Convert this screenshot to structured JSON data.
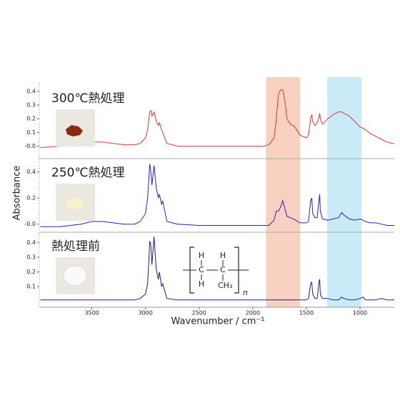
{
  "bands": [
    {
      "range": [
        1876,
        1558
      ],
      "color": "#f7c9b5"
    },
    {
      "range": [
        1305,
        987
      ],
      "color": "#bfe6f6"
    }
  ],
  "chart_data": [
    {
      "type": "line",
      "title": "300℃熱処理",
      "color": "#e03535",
      "x": [
        3980,
        3800,
        3600,
        3500,
        3400,
        3300,
        3200,
        3100,
        3050,
        3000,
        2980,
        2960,
        2950,
        2940,
        2920,
        2900,
        2880,
        2870,
        2850,
        2840,
        2800,
        2700,
        2500,
        2300,
        2100,
        2000,
        1900,
        1850,
        1800,
        1780,
        1760,
        1740,
        1720,
        1700,
        1680,
        1650,
        1620,
        1600,
        1560,
        1500,
        1480,
        1460,
        1450,
        1440,
        1420,
        1400,
        1380,
        1375,
        1370,
        1350,
        1300,
        1250,
        1200,
        1170,
        1150,
        1100,
        1050,
        1000,
        970,
        950,
        900,
        850,
        800,
        750,
        700,
        680
      ],
      "values": [
        -0.01,
        0.0,
        0.02,
        0.03,
        0.03,
        0.02,
        0.01,
        0.01,
        0.02,
        0.06,
        0.12,
        0.25,
        0.26,
        0.22,
        0.25,
        0.18,
        0.15,
        0.17,
        0.12,
        0.1,
        0.02,
        0.0,
        0.0,
        0.0,
        0.0,
        0.0,
        0.0,
        0.01,
        0.06,
        0.2,
        0.38,
        0.41,
        0.41,
        0.33,
        0.2,
        0.16,
        0.15,
        0.13,
        0.08,
        0.06,
        0.08,
        0.2,
        0.23,
        0.18,
        0.15,
        0.17,
        0.22,
        0.24,
        0.2,
        0.16,
        0.2,
        0.23,
        0.25,
        0.25,
        0.24,
        0.22,
        0.18,
        0.14,
        0.13,
        0.12,
        0.09,
        0.07,
        0.05,
        0.03,
        0.02,
        0.02
      ],
      "xlim": [
        3990,
        680
      ],
      "ylim": [
        -0.07,
        0.43
      ],
      "yticks": [
        {
          "value": 0,
          "label": "-0.0"
        },
        0.1,
        0.2,
        0.3,
        0.4
      ]
    },
    {
      "type": "line",
      "title": "250℃熱処理",
      "color": "#2323c4",
      "ylabel": "Absorbance",
      "x": [
        3980,
        3800,
        3600,
        3500,
        3400,
        3300,
        3200,
        3100,
        3050,
        3000,
        2980,
        2960,
        2950,
        2940,
        2920,
        2900,
        2880,
        2870,
        2850,
        2840,
        2800,
        2700,
        2500,
        2300,
        2100,
        2000,
        1900,
        1850,
        1800,
        1780,
        1760,
        1740,
        1720,
        1700,
        1680,
        1650,
        1620,
        1600,
        1560,
        1500,
        1480,
        1460,
        1450,
        1440,
        1420,
        1400,
        1380,
        1375,
        1370,
        1350,
        1300,
        1250,
        1200,
        1170,
        1150,
        1100,
        1050,
        1000,
        970,
        950,
        900,
        850,
        800,
        750,
        700,
        680
      ],
      "values": [
        -0.02,
        -0.02,
        0.0,
        0.02,
        0.02,
        0.01,
        0.0,
        0.0,
        0.02,
        0.08,
        0.2,
        0.46,
        0.4,
        0.3,
        0.45,
        0.28,
        0.2,
        0.23,
        0.15,
        0.18,
        0.02,
        0.0,
        -0.01,
        -0.01,
        -0.01,
        -0.01,
        -0.01,
        -0.01,
        0.03,
        0.1,
        0.1,
        0.13,
        0.18,
        0.12,
        0.06,
        0.05,
        0.04,
        0.03,
        0.01,
        0.01,
        0.02,
        0.18,
        0.2,
        0.08,
        0.05,
        0.05,
        0.2,
        0.23,
        0.1,
        0.04,
        0.03,
        0.04,
        0.05,
        0.09,
        0.07,
        0.04,
        0.03,
        0.04,
        0.03,
        0.02,
        0.01,
        0.01,
        0.0,
        -0.01,
        -0.01,
        -0.01
      ],
      "xlim": [
        3990,
        680
      ],
      "ylim": [
        -0.04,
        0.48
      ],
      "yticks": [
        {
          "value": 0,
          "label": "-0.0"
        },
        0.2,
        0.4
      ]
    },
    {
      "type": "line",
      "title": "熱処理前",
      "color": "#1c1c9c",
      "xlabel": "Wavenumber / cm⁻¹",
      "x": [
        3980,
        3800,
        3600,
        3500,
        3400,
        3300,
        3200,
        3100,
        3050,
        3000,
        2980,
        2960,
        2950,
        2940,
        2920,
        2900,
        2880,
        2870,
        2850,
        2840,
        2800,
        2700,
        2500,
        2300,
        2100,
        2000,
        1900,
        1850,
        1800,
        1780,
        1760,
        1740,
        1720,
        1700,
        1680,
        1650,
        1620,
        1600,
        1560,
        1500,
        1480,
        1460,
        1450,
        1440,
        1420,
        1400,
        1380,
        1375,
        1370,
        1350,
        1300,
        1250,
        1200,
        1170,
        1150,
        1100,
        1050,
        1000,
        970,
        950,
        900,
        850,
        800,
        750,
        700,
        680
      ],
      "values": [
        0.01,
        0.01,
        0.01,
        0.01,
        0.01,
        0.01,
        0.01,
        0.01,
        0.02,
        0.05,
        0.12,
        0.41,
        0.38,
        0.25,
        0.44,
        0.22,
        0.15,
        0.2,
        0.1,
        0.12,
        0.02,
        0.01,
        0.01,
        0.01,
        0.01,
        0.01,
        0.01,
        0.01,
        0.01,
        0.01,
        0.01,
        0.01,
        0.01,
        0.01,
        0.01,
        0.01,
        0.01,
        0.01,
        0.01,
        0.01,
        0.02,
        0.12,
        0.13,
        0.05,
        0.02,
        0.02,
        0.14,
        0.15,
        0.05,
        0.02,
        0.02,
        0.01,
        0.01,
        0.03,
        0.02,
        0.01,
        0.01,
        0.02,
        0.03,
        0.01,
        0.01,
        0.01,
        0.02,
        0.01,
        0.01,
        0.01
      ],
      "xlim": [
        3990,
        680
      ],
      "ylim": [
        -0.02,
        0.45
      ],
      "yticks": [
        0.1,
        0.2,
        0.3,
        0.4
      ],
      "xticks": [
        3500,
        3000,
        2500,
        2000,
        1500,
        1000
      ],
      "annotations": [
        "H",
        "H",
        "C",
        "C",
        "H",
        "CH₃",
        "n"
      ]
    }
  ]
}
